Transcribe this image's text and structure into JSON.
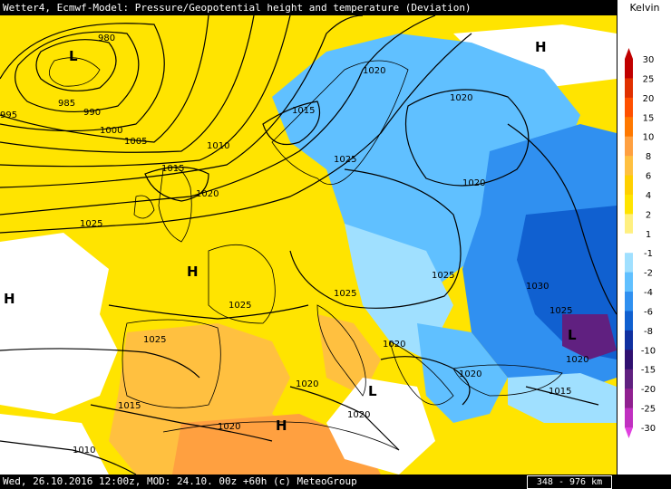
{
  "title": "Wetter4, Ecmwf-Model: Pressure/Geopotential height and temperature (Deviation)",
  "footer": {
    "valid": "Wed, 26.10.2016 12:00z, MOD: 24.10. 00z +60h (c) MeteoGroup",
    "scale": "348 - 976 km"
  },
  "legend": {
    "unit": "Kelvin",
    "levels": [
      "30",
      "25",
      "20",
      "15",
      "10",
      "8",
      "6",
      "4",
      "2",
      "1",
      "-1",
      "-2",
      "-4",
      "-6",
      "-8",
      "-10",
      "-15",
      "-20",
      "-25",
      "-30"
    ],
    "colors": [
      "#c00000",
      "#e03000",
      "#ff5000",
      "#ff7800",
      "#ffa040",
      "#ffc040",
      "#ffd000",
      "#ffe400",
      "#fff080",
      "#ffffff",
      "#a0e0ff",
      "#60c0ff",
      "#3090f0",
      "#1060d0",
      "#1030a0",
      "#301070",
      "#602080",
      "#902090",
      "#c030c0",
      "#e040e0"
    ]
  },
  "isobars": [
    "980",
    "985",
    "990",
    "995",
    "1000",
    "1005",
    "1010",
    "1015",
    "1015",
    "1015",
    "1020",
    "1020",
    "1020",
    "1020",
    "1020",
    "1020",
    "1020",
    "1020",
    "1020",
    "1025",
    "1025",
    "1025",
    "1025",
    "1025",
    "1025",
    "1025",
    "1030",
    "1015",
    "1010",
    "1020"
  ],
  "pressure_centers": [
    "L",
    "L",
    "H",
    "H",
    "H",
    "H",
    "L"
  ]
}
